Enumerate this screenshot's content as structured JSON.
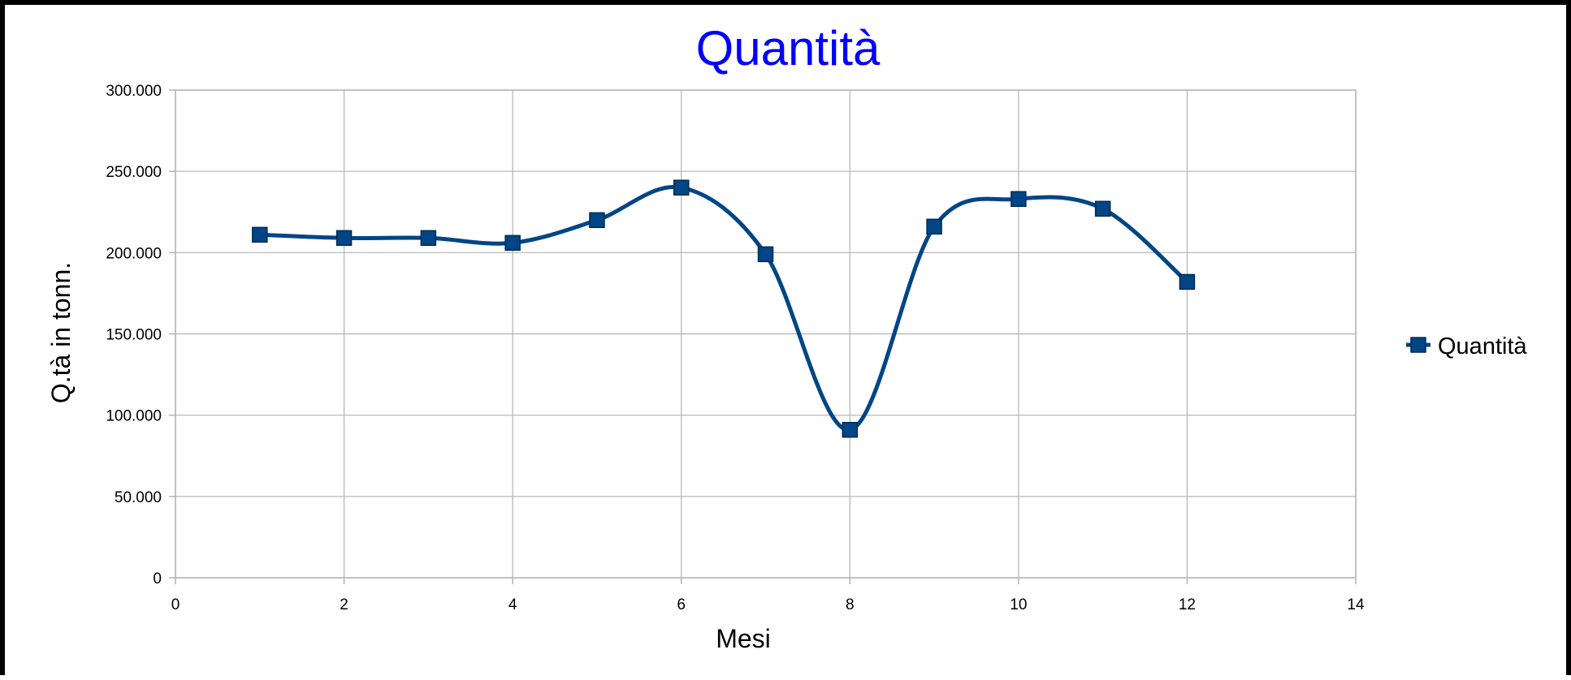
{
  "chart_data": {
    "type": "line",
    "title": "Quantità",
    "xlabel": "Mesi",
    "ylabel": "Q.tà in tonn.",
    "xlim": [
      0,
      14
    ],
    "ylim": [
      0,
      300000
    ],
    "x_ticks": [
      0,
      2,
      4,
      6,
      8,
      10,
      12,
      14
    ],
    "x_tick_labels": [
      "0",
      "2",
      "4",
      "6",
      "8",
      "10",
      "12",
      "14"
    ],
    "y_ticks": [
      0,
      50000,
      100000,
      150000,
      200000,
      250000,
      300000
    ],
    "y_tick_labels": [
      "0",
      "50.000",
      "100.000",
      "150.000",
      "200.000",
      "250.000",
      "300.000"
    ],
    "grid": true,
    "smooth": true,
    "legend": {
      "position": "right",
      "entries": [
        "Quantità"
      ]
    },
    "series": [
      {
        "name": "Quantità",
        "color": "#004586",
        "marker": "square",
        "x": [
          1,
          2,
          3,
          4,
          5,
          6,
          7,
          8,
          9,
          10,
          11,
          12
        ],
        "y": [
          211000,
          209000,
          209000,
          206000,
          220000,
          240000,
          199000,
          91000,
          216000,
          233000,
          227000,
          182000
        ]
      }
    ],
    "colors": {
      "title": "#0000ff",
      "grid": "#b3b3b3",
      "axis": "#b3b3b3",
      "frame": "#000000"
    }
  }
}
